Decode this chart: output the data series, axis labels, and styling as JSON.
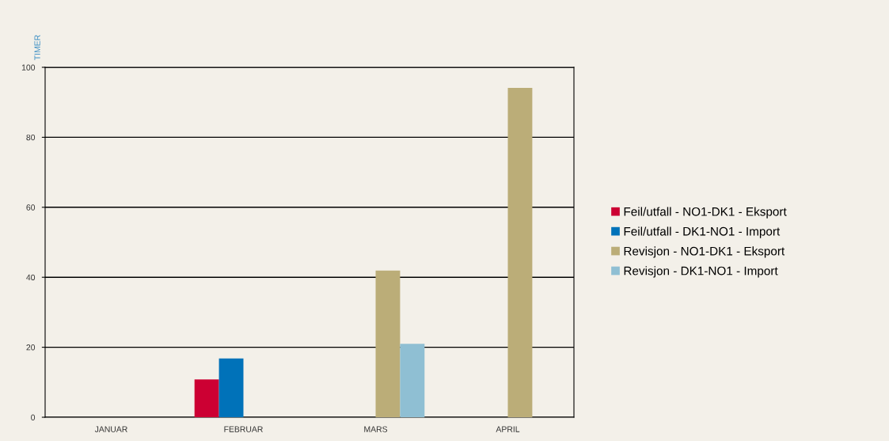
{
  "chart_data": {
    "type": "bar",
    "ylabel": "TIMER",
    "categories": [
      "JANUAR",
      "FEBRUAR",
      "MARS",
      "APRIL"
    ],
    "series": [
      {
        "name": "Feil/utfall - NO1-DK1 - Eksport",
        "color": "#cc0033",
        "values": [
          null,
          10.8,
          null,
          null
        ]
      },
      {
        "name": "Feil/utfall - DK1-NO1 - Import",
        "color": "#0072b9",
        "values": [
          null,
          16.8,
          null,
          null
        ]
      },
      {
        "name": "Revisjon - NO1-DK1 - Eksport",
        "color": "#bbad78",
        "values": [
          null,
          null,
          41.9,
          94.1
        ]
      },
      {
        "name": "Revisjon - DK1-NO1 - Import",
        "color": "#8fbfd3",
        "values": [
          null,
          null,
          21.0,
          null
        ]
      }
    ],
    "ylim": [
      0,
      100
    ],
    "yticks": [
      0,
      20,
      40,
      60,
      80,
      100
    ],
    "grid": "y",
    "legend": "right"
  }
}
